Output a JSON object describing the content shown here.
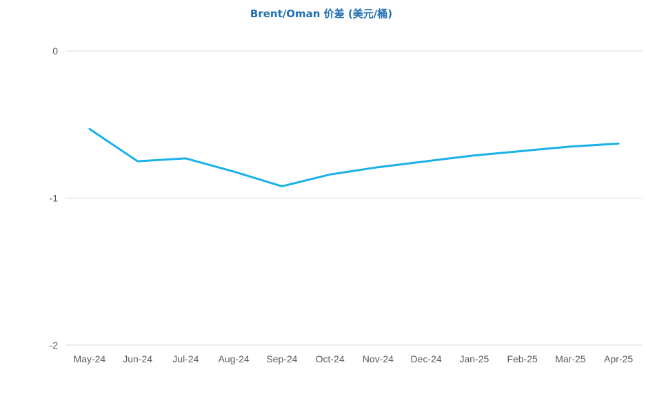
{
  "chart_data": {
    "type": "line",
    "title": "Brent/Oman 价差 (美元/桶)",
    "xlabel": "",
    "ylabel": "",
    "categories": [
      "May-24",
      "Jun-24",
      "Jul-24",
      "Aug-24",
      "Sep-24",
      "Oct-24",
      "Nov-24",
      "Dec-24",
      "Jan-25",
      "Feb-25",
      "Mar-25",
      "Apr-25"
    ],
    "series": [
      {
        "values": [
          -0.53,
          -0.75,
          -0.73,
          -0.82,
          -0.92,
          -0.84,
          -0.79,
          -0.75,
          -0.71,
          -0.68,
          -0.65,
          -0.63
        ]
      }
    ],
    "ylim": [
      -2,
      0
    ],
    "yticks": [
      0,
      -1,
      -2
    ],
    "grid": true,
    "legend": "none",
    "colors": {
      "title": "#1f6fb2",
      "line": "#1ab0ea",
      "grid": "#d9d9d9",
      "tick_text": "#595959"
    }
  }
}
